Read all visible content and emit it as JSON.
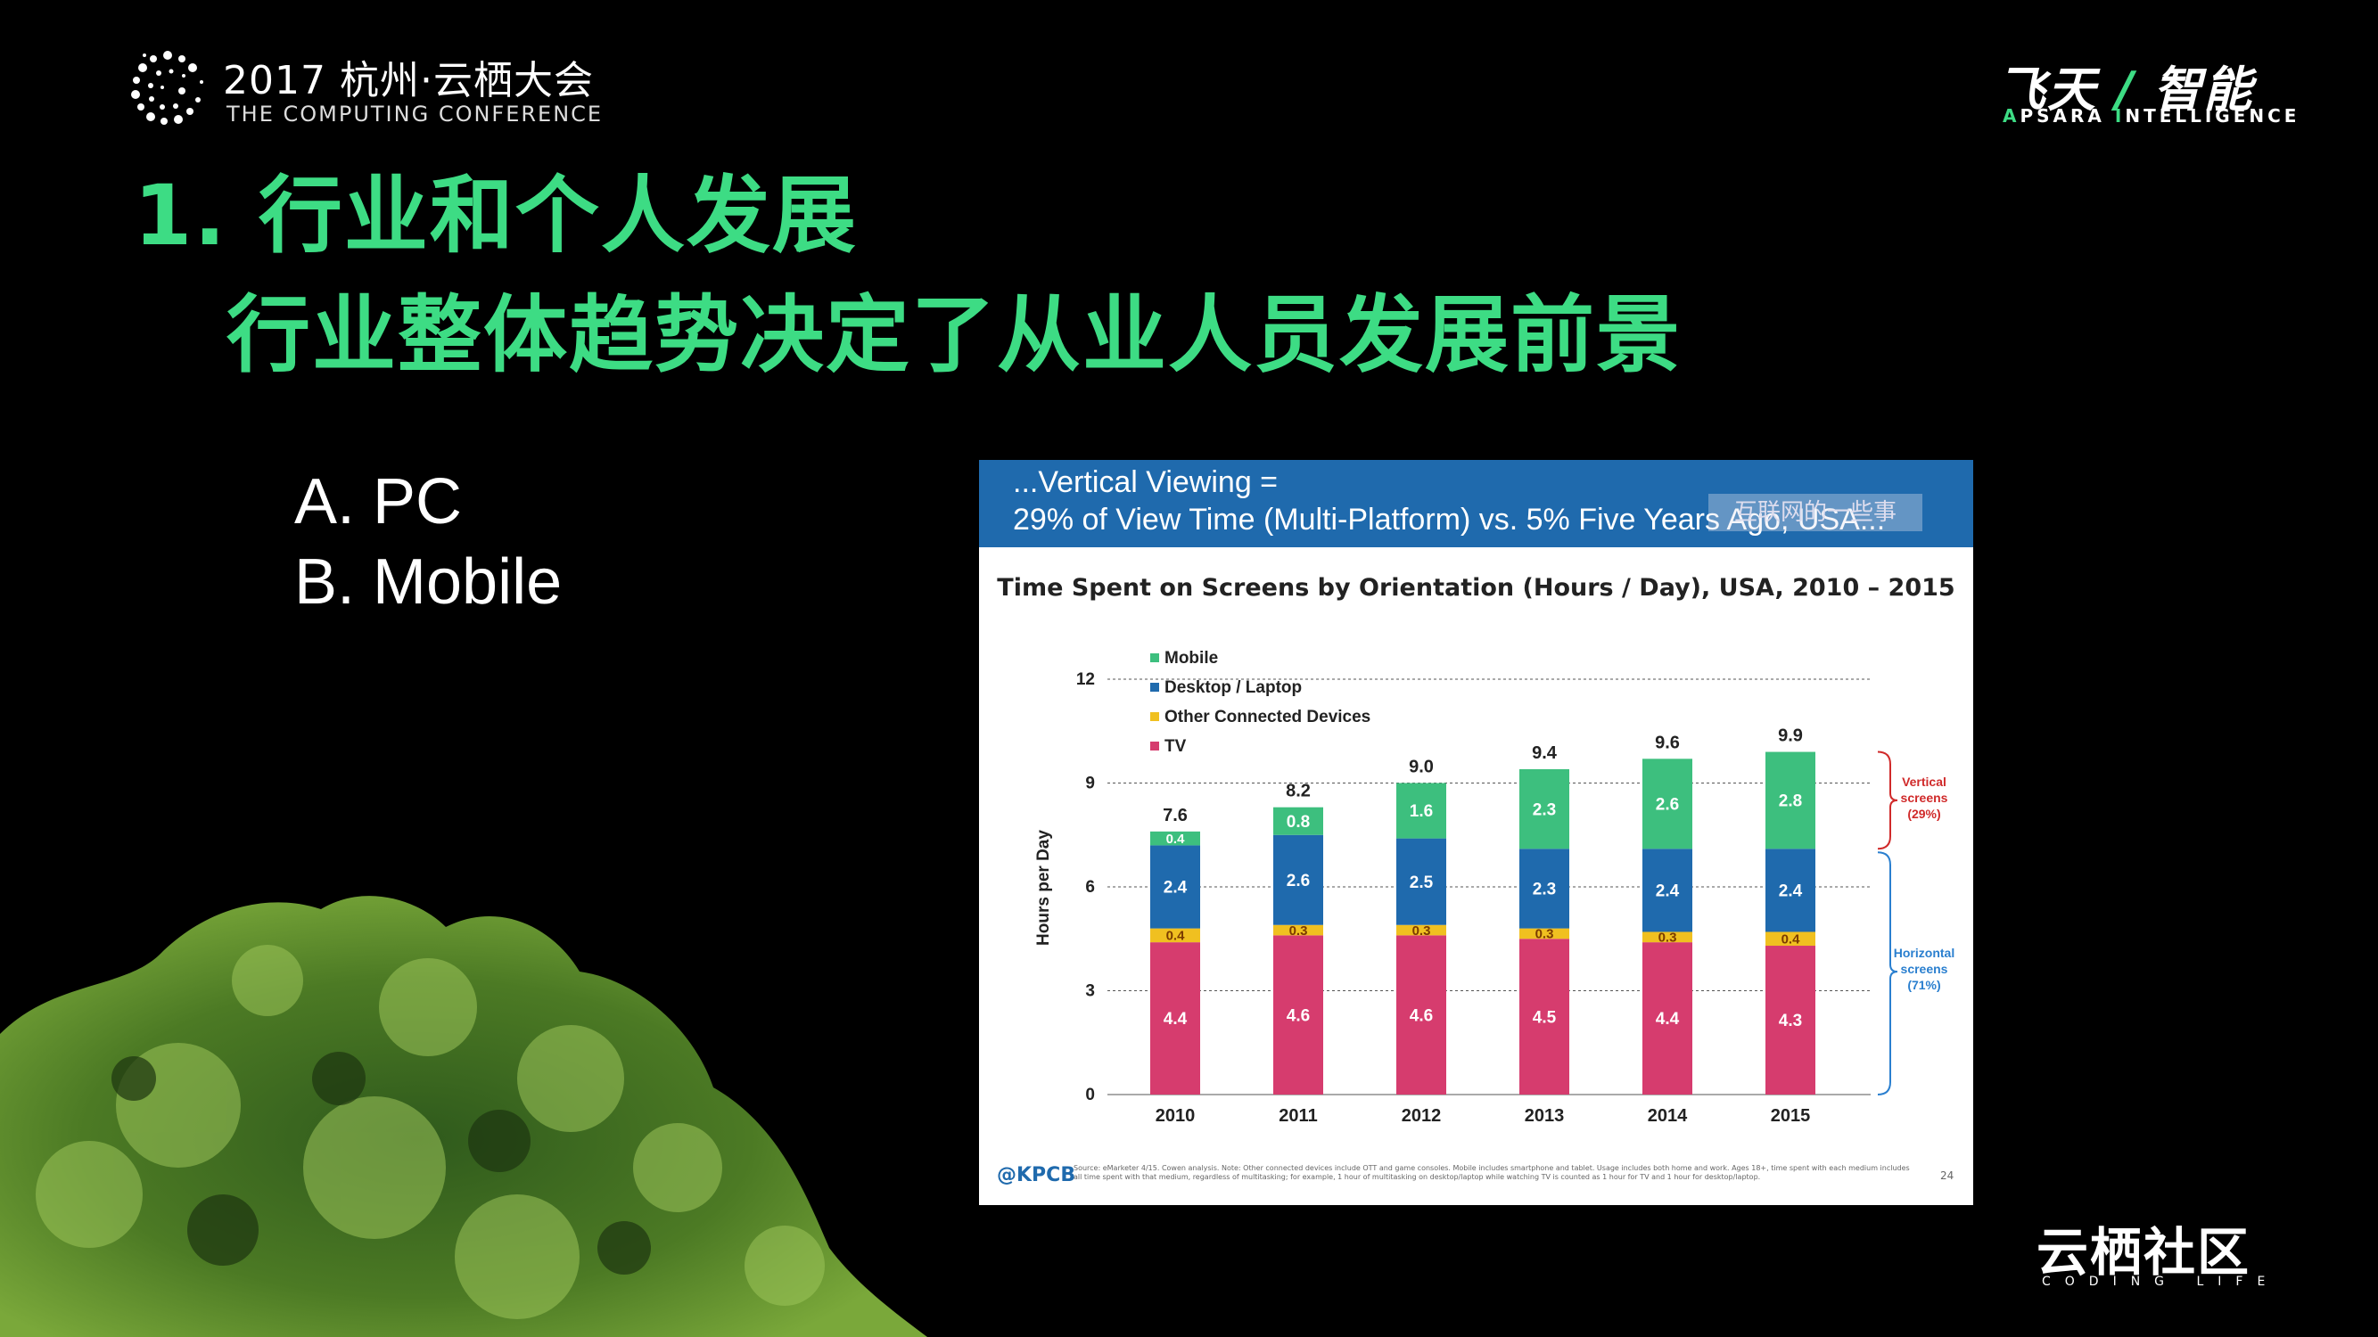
{
  "header": {
    "conference_title": "2017 杭州·云栖大会",
    "conference_subtitle": "THE COMPUTING CONFERENCE",
    "brand_left": "飞天",
    "brand_slash": "/",
    "brand_right": "智能",
    "brand_sub_a": "A",
    "brand_sub_b": "PSARA ",
    "brand_sub_c": "I",
    "brand_sub_d": "NTELLIGENCE"
  },
  "slide": {
    "title_line1": "1. 行业和个人发展",
    "title_line2": "行业整体趋势决定了从业人员发展前景",
    "option_a": "A. PC",
    "option_b": "B.  Mobile"
  },
  "panel": {
    "header_line1": "...Vertical Viewing =",
    "header_line2": "29% of View Time (Multi-Platform) vs. 5% Five Years Ago, USA...",
    "watermark": "互联网的一些事",
    "source_brand": "@KPCB",
    "source_text": "Source: eMarketer 4/15. Cowen analysis. Note: Other connected devices include OTT and game consoles. Mobile includes smartphone and tablet. Usage includes both home and work. Ages 18+, time spent with each medium includes all time spent with that medium, regardless of multitasking; for example, 1 hour of multitasking on desktop/laptop while watching TV is counted as 1 hour for TV and 1 hour for desktop/laptop.",
    "page_number": "24"
  },
  "chart_data": {
    "type": "bar",
    "stacked": true,
    "title": "Time Spent on Screens by Orientation (Hours / Day), USA, 2010 – 2015",
    "xlabel": "",
    "ylabel": "Hours per Day",
    "ylim": [
      0,
      12
    ],
    "yticks": [
      "0",
      "3",
      "6",
      "9",
      "12"
    ],
    "categories": [
      "2010",
      "2011",
      "2012",
      "2013",
      "2014",
      "2015"
    ],
    "series": [
      {
        "name": "TV",
        "color": "#d63c6e",
        "values": [
          4.4,
          4.6,
          4.6,
          4.5,
          4.4,
          4.3
        ]
      },
      {
        "name": "Other Connected Devices",
        "color": "#f0c020",
        "values": [
          0.4,
          0.3,
          0.3,
          0.3,
          0.3,
          0.4
        ]
      },
      {
        "name": "Desktop / Laptop",
        "color": "#1f6aad",
        "values": [
          2.4,
          2.6,
          2.5,
          2.3,
          2.4,
          2.4
        ]
      },
      {
        "name": "Mobile",
        "color": "#3dbf7e",
        "values": [
          0.4,
          0.8,
          1.6,
          2.3,
          2.6,
          2.8
        ]
      }
    ],
    "totals": [
      "7.6",
      "8.2",
      "9.0",
      "9.4",
      "9.6",
      "9.9"
    ],
    "legend": [
      "Mobile",
      "Desktop / Laptop",
      "Other Connected Devices",
      "TV"
    ],
    "legend_position": "top-left",
    "grid": true,
    "annotations": {
      "vertical": [
        "Vertical",
        "screens",
        "(29%)"
      ],
      "horizontal": [
        "Horizontal",
        "screens",
        "(71%)"
      ]
    }
  },
  "footer": {
    "community": "云栖社区",
    "community_sub": "CODING LIFE"
  }
}
